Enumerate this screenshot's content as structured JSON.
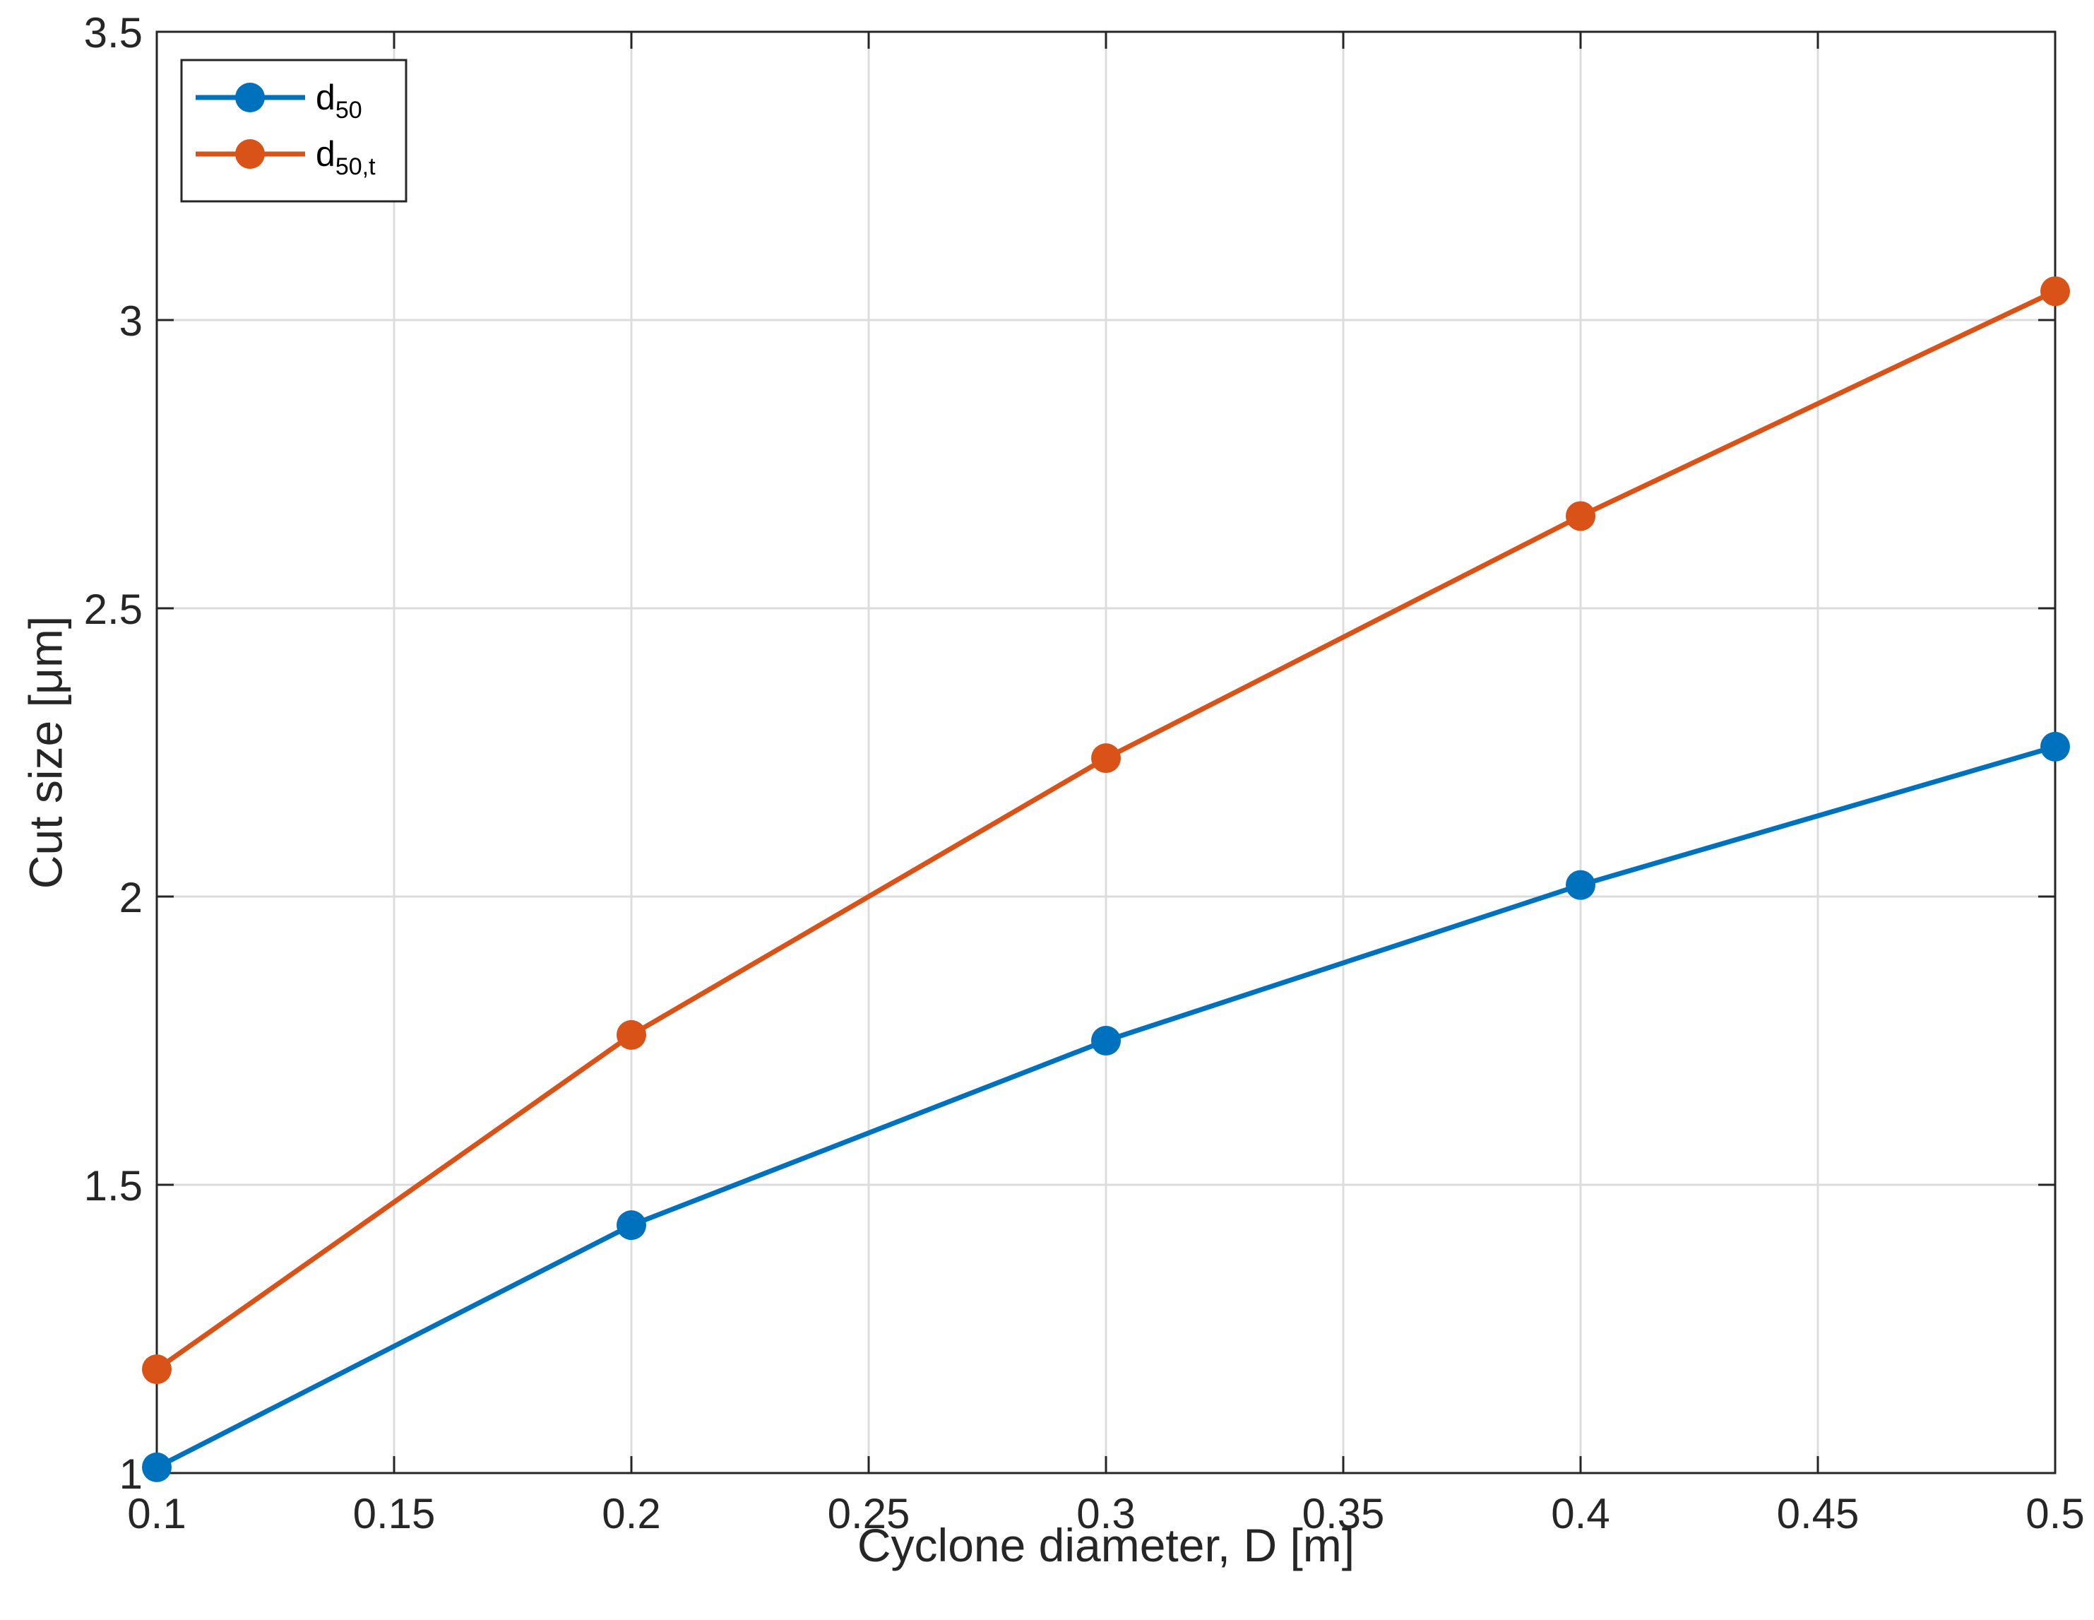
{
  "chart_data": {
    "type": "line",
    "title": "",
    "xlabel": "Cyclone diameter, D [m]",
    "ylabel": "Cut size [μm]",
    "xlim": [
      0.1,
      0.5
    ],
    "ylim": [
      1,
      3.5
    ],
    "xticks": [
      0.1,
      0.15,
      0.2,
      0.25,
      0.3,
      0.35,
      0.4,
      0.45,
      0.5
    ],
    "xtick_labels": [
      "0.1",
      "0.15",
      "0.2",
      "0.25",
      "0.3",
      "0.35",
      "0.4",
      "0.45",
      "0.5"
    ],
    "yticks": [
      1,
      1.5,
      2,
      2.5,
      3,
      3.5
    ],
    "ytick_labels": [
      "1",
      "1.5",
      "2",
      "2.5",
      "3",
      "3.5"
    ],
    "grid": true,
    "legend_position": "top-left",
    "x": [
      0.1,
      0.2,
      0.3,
      0.4,
      0.5
    ],
    "series": [
      {
        "name": "d",
        "name_sub": "50",
        "color": "#0072BD",
        "marker": "circle",
        "values": [
          1.01,
          1.43,
          1.75,
          2.02,
          2.26
        ]
      },
      {
        "name": "d",
        "name_sub": "50,t",
        "color": "#D95319",
        "marker": "circle",
        "values": [
          1.18,
          1.76,
          2.24,
          2.66,
          3.05
        ]
      }
    ]
  }
}
